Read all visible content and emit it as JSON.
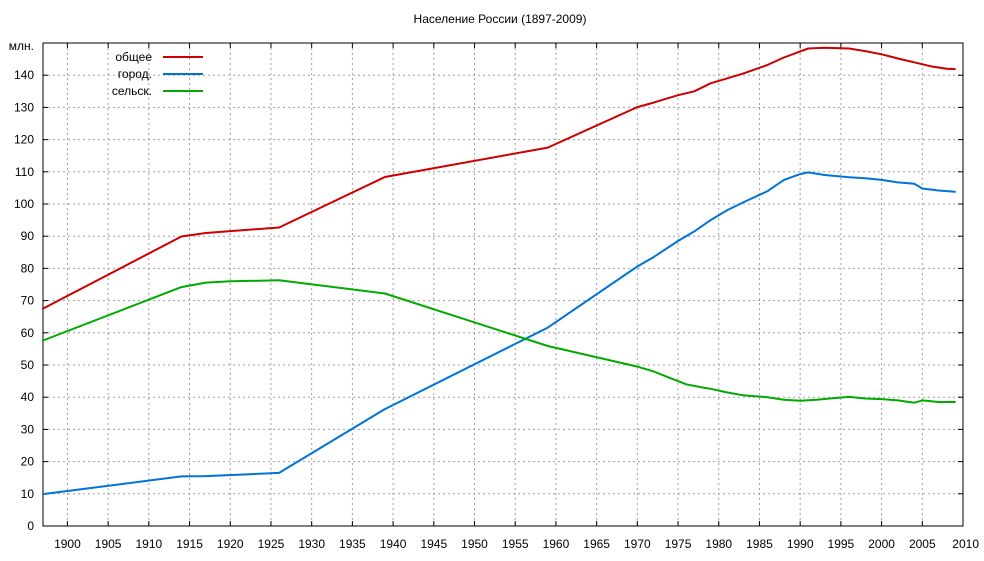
{
  "chart_data": {
    "type": "line",
    "title": "Население России (1897-2009)",
    "ylabel": "млн.",
    "xlabel": "",
    "xlim": [
      1897,
      2010
    ],
    "ylim": [
      0,
      150
    ],
    "x_ticks": [
      1900,
      1905,
      1910,
      1915,
      1920,
      1925,
      1930,
      1935,
      1940,
      1945,
      1950,
      1955,
      1960,
      1965,
      1970,
      1975,
      1980,
      1985,
      1990,
      1995,
      2000,
      2005,
      2010
    ],
    "y_ticks": [
      0,
      10,
      20,
      30,
      40,
      50,
      60,
      70,
      80,
      90,
      100,
      110,
      120,
      130,
      140
    ],
    "grid": true,
    "legend_position": "top-left",
    "series": [
      {
        "name": "общее",
        "color": "#cc0000",
        "points": [
          [
            1897,
            67.5
          ],
          [
            1914,
            89.9
          ],
          [
            1917,
            91.0
          ],
          [
            1926,
            92.7
          ],
          [
            1939,
            108.4
          ],
          [
            1959,
            117.5
          ],
          [
            1970,
            130.1
          ],
          [
            1972,
            131.5
          ],
          [
            1975,
            133.8
          ],
          [
            1977,
            135.0
          ],
          [
            1979,
            137.5
          ],
          [
            1981,
            139.0
          ],
          [
            1983,
            140.5
          ],
          [
            1986,
            143.2
          ],
          [
            1988,
            145.5
          ],
          [
            1990,
            147.4
          ],
          [
            1991,
            148.3
          ],
          [
            1993,
            148.5
          ],
          [
            1996,
            148.3
          ],
          [
            1998,
            147.5
          ],
          [
            2000,
            146.5
          ],
          [
            2002,
            145.2
          ],
          [
            2004,
            144.0
          ],
          [
            2006,
            142.8
          ],
          [
            2008,
            142.0
          ],
          [
            2009,
            141.9
          ]
        ]
      },
      {
        "name": "город.",
        "color": "#0073d9",
        "points": [
          [
            1897,
            9.9
          ],
          [
            1914,
            15.4
          ],
          [
            1917,
            15.5
          ],
          [
            1926,
            16.5
          ],
          [
            1939,
            36.3
          ],
          [
            1959,
            61.6
          ],
          [
            1970,
            80.6
          ],
          [
            1972,
            83.5
          ],
          [
            1975,
            88.5
          ],
          [
            1977,
            91.5
          ],
          [
            1979,
            95.0
          ],
          [
            1981,
            98.0
          ],
          [
            1983,
            100.5
          ],
          [
            1986,
            104.0
          ],
          [
            1988,
            107.5
          ],
          [
            1990,
            109.3
          ],
          [
            1991,
            109.8
          ],
          [
            1993,
            109.0
          ],
          [
            1996,
            108.3
          ],
          [
            1998,
            108.0
          ],
          [
            2000,
            107.5
          ],
          [
            2002,
            106.7
          ],
          [
            2004,
            106.3
          ],
          [
            2005,
            104.8
          ],
          [
            2007,
            104.2
          ],
          [
            2009,
            103.8
          ]
        ]
      },
      {
        "name": "сельск.",
        "color": "#00aa00",
        "points": [
          [
            1897,
            57.6
          ],
          [
            1914,
            74.2
          ],
          [
            1917,
            75.6
          ],
          [
            1920,
            76.0
          ],
          [
            1926,
            76.3
          ],
          [
            1939,
            72.2
          ],
          [
            1959,
            55.9
          ],
          [
            1970,
            49.5
          ],
          [
            1972,
            48.0
          ],
          [
            1974,
            46.0
          ],
          [
            1976,
            44.0
          ],
          [
            1978,
            43.0
          ],
          [
            1979,
            42.6
          ],
          [
            1981,
            41.5
          ],
          [
            1983,
            40.6
          ],
          [
            1986,
            40.0
          ],
          [
            1988,
            39.2
          ],
          [
            1990,
            38.9
          ],
          [
            1992,
            39.2
          ],
          [
            1994,
            39.7
          ],
          [
            1996,
            40.1
          ],
          [
            1998,
            39.6
          ],
          [
            2000,
            39.4
          ],
          [
            2002,
            39.0
          ],
          [
            2004,
            38.3
          ],
          [
            2005,
            39.0
          ],
          [
            2007,
            38.5
          ],
          [
            2009,
            38.5
          ]
        ]
      }
    ]
  }
}
